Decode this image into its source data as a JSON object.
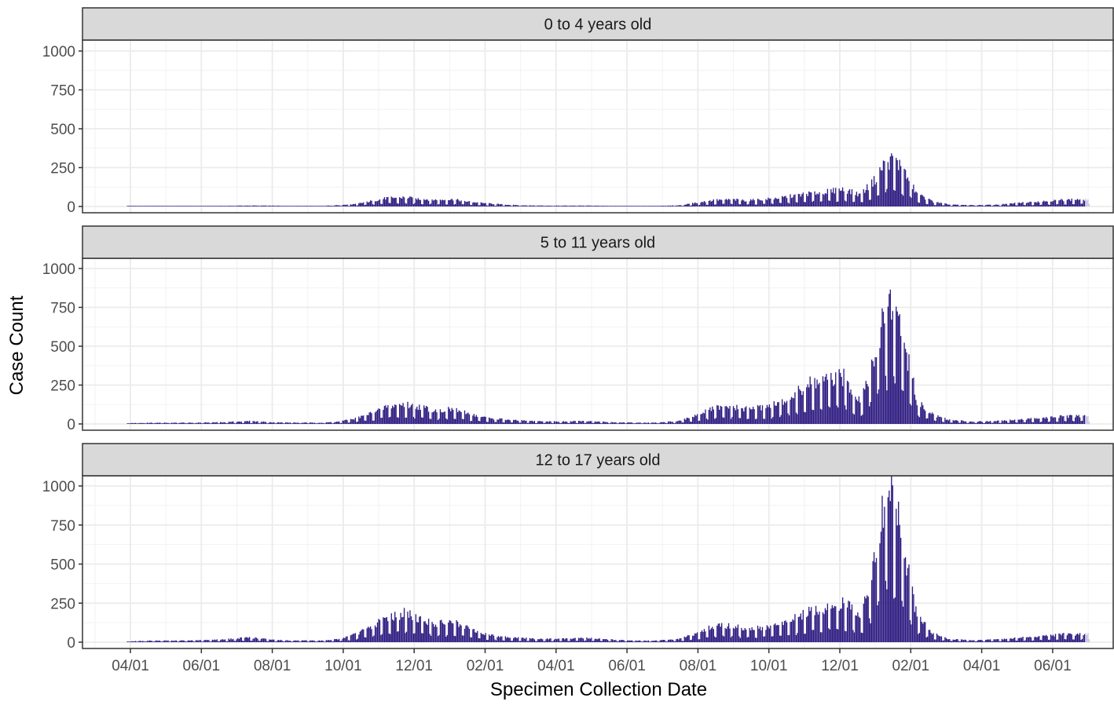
{
  "chart_data": {
    "type": "bar",
    "xlabel": "Specimen Collection Date",
    "ylabel": "Case Count",
    "ylim": [
      0,
      1000
    ],
    "yticks": [
      0,
      250,
      500,
      750,
      1000
    ],
    "ytick_labels": [
      "0",
      "250",
      "500",
      "750",
      "1000"
    ],
    "xticks": [
      "04/01",
      "06/01",
      "08/01",
      "10/01",
      "12/01",
      "02/01",
      "04/01",
      "06/01",
      "08/01",
      "10/01",
      "12/01",
      "02/01",
      "04/01",
      "06/01"
    ],
    "grid": true,
    "legend": "none",
    "bar_color": "#2d1b80",
    "recent_bar_color": "#c9c4e0",
    "series": [
      {
        "name": "0 to 4 years old",
        "weekly": [
          {
            "x": "03/29",
            "y": 2
          },
          {
            "x": "04/19",
            "y": 3
          },
          {
            "x": "05/10",
            "y": 3
          },
          {
            "x": "05/31",
            "y": 3
          },
          {
            "x": "06/21",
            "y": 4
          },
          {
            "x": "07/12",
            "y": 6
          },
          {
            "x": "08/02",
            "y": 5
          },
          {
            "x": "08/23",
            "y": 4
          },
          {
            "x": "09/13",
            "y": 4
          },
          {
            "x": "09/27",
            "y": 8
          },
          {
            "x": "10/11",
            "y": 15
          },
          {
            "x": "10/25",
            "y": 35
          },
          {
            "x": "11/08",
            "y": 55
          },
          {
            "x": "11/22",
            "y": 58
          },
          {
            "x": "12/06",
            "y": 48
          },
          {
            "x": "12/20",
            "y": 42
          },
          {
            "x": "01/03",
            "y": 45
          },
          {
            "x": "01/17",
            "y": 30
          },
          {
            "x": "01/31",
            "y": 20
          },
          {
            "x": "02/21",
            "y": 10
          },
          {
            "x": "03/14",
            "y": 6
          },
          {
            "x": "04/04",
            "y": 5
          },
          {
            "x": "04/25",
            "y": 6
          },
          {
            "x": "05/16",
            "y": 4
          },
          {
            "x": "06/06",
            "y": 3
          },
          {
            "x": "06/27",
            "y": 4
          },
          {
            "x": "07/18",
            "y": 8
          },
          {
            "x": "08/01",
            "y": 25
          },
          {
            "x": "08/15",
            "y": 40
          },
          {
            "x": "08/29",
            "y": 45
          },
          {
            "x": "09/12",
            "y": 38
          },
          {
            "x": "09/26",
            "y": 45
          },
          {
            "x": "10/10",
            "y": 55
          },
          {
            "x": "10/24",
            "y": 70
          },
          {
            "x": "11/07",
            "y": 85
          },
          {
            "x": "11/21",
            "y": 95
          },
          {
            "x": "12/05",
            "y": 110
          },
          {
            "x": "12/19",
            "y": 75
          },
          {
            "x": "01/02",
            "y": 180
          },
          {
            "x": "01/09",
            "y": 280
          },
          {
            "x": "01/16",
            "y": 300
          },
          {
            "x": "01/23",
            "y": 260
          },
          {
            "x": "01/30",
            "y": 170
          },
          {
            "x": "02/06",
            "y": 80
          },
          {
            "x": "02/20",
            "y": 30
          },
          {
            "x": "03/06",
            "y": 12
          },
          {
            "x": "03/27",
            "y": 8
          },
          {
            "x": "04/17",
            "y": 12
          },
          {
            "x": "05/08",
            "y": 25
          },
          {
            "x": "05/29",
            "y": 35
          },
          {
            "x": "06/12",
            "y": 42
          },
          {
            "x": "06/26",
            "y": 45
          }
        ]
      },
      {
        "name": "5 to 11 years old",
        "weekly": [
          {
            "x": "03/29",
            "y": 5
          },
          {
            "x": "04/19",
            "y": 8
          },
          {
            "x": "05/10",
            "y": 8
          },
          {
            "x": "05/31",
            "y": 8
          },
          {
            "x": "06/21",
            "y": 12
          },
          {
            "x": "07/12",
            "y": 18
          },
          {
            "x": "08/02",
            "y": 10
          },
          {
            "x": "08/23",
            "y": 8
          },
          {
            "x": "09/13",
            "y": 8
          },
          {
            "x": "09/27",
            "y": 15
          },
          {
            "x": "10/11",
            "y": 35
          },
          {
            "x": "10/25",
            "y": 70
          },
          {
            "x": "11/08",
            "y": 115
          },
          {
            "x": "11/22",
            "y": 125
          },
          {
            "x": "12/06",
            "y": 110
          },
          {
            "x": "12/20",
            "y": 85
          },
          {
            "x": "01/03",
            "y": 95
          },
          {
            "x": "01/17",
            "y": 65
          },
          {
            "x": "01/31",
            "y": 40
          },
          {
            "x": "02/21",
            "y": 25
          },
          {
            "x": "03/14",
            "y": 18
          },
          {
            "x": "04/04",
            "y": 15
          },
          {
            "x": "04/25",
            "y": 18
          },
          {
            "x": "05/16",
            "y": 12
          },
          {
            "x": "06/06",
            "y": 8
          },
          {
            "x": "06/27",
            "y": 8
          },
          {
            "x": "07/18",
            "y": 20
          },
          {
            "x": "08/01",
            "y": 60
          },
          {
            "x": "08/15",
            "y": 100
          },
          {
            "x": "08/29",
            "y": 110
          },
          {
            "x": "09/12",
            "y": 95
          },
          {
            "x": "09/26",
            "y": 105
          },
          {
            "x": "10/10",
            "y": 130
          },
          {
            "x": "10/24",
            "y": 190
          },
          {
            "x": "11/07",
            "y": 260
          },
          {
            "x": "11/21",
            "y": 280
          },
          {
            "x": "12/05",
            "y": 300
          },
          {
            "x": "12/19",
            "y": 150
          },
          {
            "x": "01/02",
            "y": 450
          },
          {
            "x": "01/09",
            "y": 740
          },
          {
            "x": "01/16",
            "y": 800
          },
          {
            "x": "01/23",
            "y": 650
          },
          {
            "x": "01/30",
            "y": 380
          },
          {
            "x": "02/06",
            "y": 150
          },
          {
            "x": "02/20",
            "y": 60
          },
          {
            "x": "03/06",
            "y": 25
          },
          {
            "x": "03/27",
            "y": 15
          },
          {
            "x": "04/17",
            "y": 20
          },
          {
            "x": "05/08",
            "y": 30
          },
          {
            "x": "05/29",
            "y": 40
          },
          {
            "x": "06/12",
            "y": 48
          },
          {
            "x": "06/26",
            "y": 50
          }
        ]
      },
      {
        "name": "12 to 17 years old",
        "weekly": [
          {
            "x": "03/29",
            "y": 5
          },
          {
            "x": "04/19",
            "y": 10
          },
          {
            "x": "05/10",
            "y": 10
          },
          {
            "x": "05/31",
            "y": 12
          },
          {
            "x": "06/21",
            "y": 18
          },
          {
            "x": "07/12",
            "y": 30
          },
          {
            "x": "08/02",
            "y": 15
          },
          {
            "x": "08/23",
            "y": 10
          },
          {
            "x": "09/13",
            "y": 10
          },
          {
            "x": "09/27",
            "y": 20
          },
          {
            "x": "10/11",
            "y": 50
          },
          {
            "x": "10/25",
            "y": 100
          },
          {
            "x": "11/08",
            "y": 160
          },
          {
            "x": "11/22",
            "y": 185
          },
          {
            "x": "12/06",
            "y": 150
          },
          {
            "x": "12/20",
            "y": 115
          },
          {
            "x": "01/03",
            "y": 130
          },
          {
            "x": "01/17",
            "y": 85
          },
          {
            "x": "01/31",
            "y": 50
          },
          {
            "x": "02/21",
            "y": 30
          },
          {
            "x": "03/14",
            "y": 22
          },
          {
            "x": "04/04",
            "y": 20
          },
          {
            "x": "04/25",
            "y": 28
          },
          {
            "x": "05/16",
            "y": 18
          },
          {
            "x": "06/06",
            "y": 10
          },
          {
            "x": "06/27",
            "y": 10
          },
          {
            "x": "07/18",
            "y": 22
          },
          {
            "x": "08/01",
            "y": 60
          },
          {
            "x": "08/15",
            "y": 100
          },
          {
            "x": "08/29",
            "y": 105
          },
          {
            "x": "09/12",
            "y": 85
          },
          {
            "x": "09/26",
            "y": 90
          },
          {
            "x": "10/10",
            "y": 110
          },
          {
            "x": "10/24",
            "y": 150
          },
          {
            "x": "11/07",
            "y": 200
          },
          {
            "x": "11/21",
            "y": 215
          },
          {
            "x": "12/05",
            "y": 260
          },
          {
            "x": "12/19",
            "y": 150
          },
          {
            "x": "01/02",
            "y": 550
          },
          {
            "x": "01/09",
            "y": 950
          },
          {
            "x": "01/16",
            "y": 980
          },
          {
            "x": "01/23",
            "y": 750
          },
          {
            "x": "01/30",
            "y": 420
          },
          {
            "x": "02/06",
            "y": 160
          },
          {
            "x": "02/20",
            "y": 55
          },
          {
            "x": "03/06",
            "y": 20
          },
          {
            "x": "03/27",
            "y": 12
          },
          {
            "x": "04/17",
            "y": 18
          },
          {
            "x": "05/08",
            "y": 30
          },
          {
            "x": "05/29",
            "y": 42
          },
          {
            "x": "06/12",
            "y": 50
          },
          {
            "x": "06/26",
            "y": 52
          }
        ]
      }
    ]
  }
}
